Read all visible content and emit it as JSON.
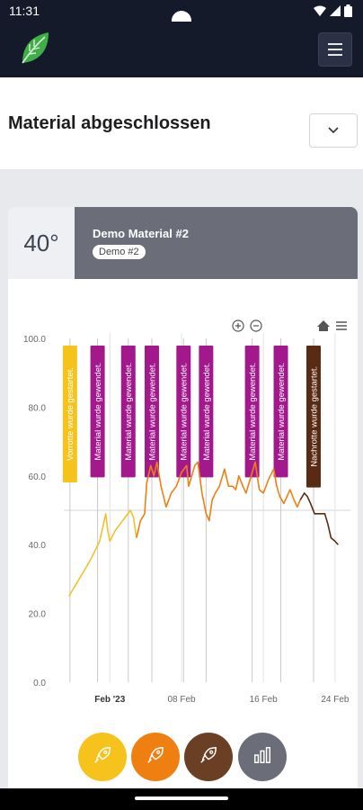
{
  "status": {
    "time": "11:31"
  },
  "header": {
    "logo_icon": "leaf-logo-icon",
    "menu_icon": "hamburger-icon"
  },
  "page": {
    "title": "Material abgeschlossen"
  },
  "card": {
    "temperature": "40°",
    "material_name": "Demo Material #2",
    "material_tag": "Demo #2"
  },
  "chart_data": {
    "type": "line",
    "x_ticks": [
      "Feb '23",
      "08 Feb",
      "16 Feb",
      "24 Feb"
    ],
    "y_ticks": [
      "0.0",
      "20.0",
      "40.0",
      "60.0",
      "80.0",
      "100.0"
    ],
    "ylim": [
      0,
      100
    ],
    "series": [
      {
        "color": "#f2c12e",
        "points": [
          [
            -4,
            25
          ],
          [
            -3,
            30
          ],
          [
            -2,
            35
          ],
          [
            -1.5,
            38
          ],
          [
            -1,
            41
          ],
          [
            -0.4,
            49
          ],
          [
            -0.2,
            44
          ],
          [
            0,
            41
          ],
          [
            0.5,
            44
          ],
          [
            1,
            46
          ],
          [
            1.5,
            48
          ],
          [
            2,
            50
          ],
          [
            2.3,
            48
          ],
          [
            2.6,
            42
          ]
        ]
      },
      {
        "color": "#f07f12",
        "points": [
          [
            2.6,
            42
          ],
          [
            3,
            47
          ],
          [
            3.4,
            49
          ],
          [
            3.6,
            58
          ],
          [
            4,
            63
          ],
          [
            4.3,
            60
          ],
          [
            4.6,
            64
          ],
          [
            5,
            57
          ],
          [
            5.5,
            51
          ],
          [
            6,
            55
          ],
          [
            6.5,
            57
          ],
          [
            7,
            61
          ],
          [
            7.5,
            63
          ],
          [
            7.7,
            57
          ],
          [
            8,
            60
          ],
          [
            8.3,
            63
          ],
          [
            8.6,
            64
          ],
          [
            9,
            55
          ],
          [
            9.4,
            49
          ],
          [
            9.7,
            47
          ],
          [
            10,
            53
          ],
          [
            10.3,
            55
          ],
          [
            10.7,
            57
          ],
          [
            11.2,
            62
          ],
          [
            11.6,
            57
          ],
          [
            12,
            57
          ],
          [
            12.3,
            56
          ],
          [
            12.6,
            60
          ],
          [
            13,
            57
          ],
          [
            13.3,
            55
          ],
          [
            13.7,
            59
          ],
          [
            14.2,
            64
          ],
          [
            14.6,
            56
          ],
          [
            15,
            55
          ],
          [
            15.5,
            59
          ],
          [
            16,
            62
          ],
          [
            16.3,
            57
          ],
          [
            16.6,
            54
          ],
          [
            17,
            52
          ],
          [
            17.3,
            54
          ],
          [
            17.6,
            56
          ],
          [
            18,
            53
          ],
          [
            18.3,
            51
          ],
          [
            18.6,
            53
          ]
        ]
      },
      {
        "color": "#5a2b14",
        "points": [
          [
            18.6,
            53
          ],
          [
            19,
            55
          ],
          [
            19.3,
            54
          ],
          [
            19.6,
            52
          ],
          [
            20,
            49
          ],
          [
            20.5,
            49
          ],
          [
            21,
            49
          ],
          [
            21.3,
            46
          ],
          [
            21.6,
            42
          ],
          [
            22,
            41
          ],
          [
            22.3,
            40
          ]
        ]
      }
    ],
    "annotations": [
      {
        "text": "Vorrotte wurde gestartet.",
        "x": -3.9,
        "color": "#f6c31c"
      },
      {
        "text": "Material wurde gewendet.",
        "x": -1.2,
        "color": "#a3198d"
      },
      {
        "text": "Material wurde gewendet.",
        "x": 1.8,
        "color": "#a3198d"
      },
      {
        "text": "Material wurde gewendet.",
        "x": 4.1,
        "color": "#a3198d"
      },
      {
        "text": "Material wurde gewendet.",
        "x": 7.2,
        "color": "#a3198d"
      },
      {
        "text": "Material wurde gewendet.",
        "x": 9.4,
        "color": "#a3198d"
      },
      {
        "text": "Material wurde gewendet.",
        "x": 13.9,
        "color": "#a3198d"
      },
      {
        "text": "Material wurde gewendet.",
        "x": 16.7,
        "color": "#a3198d"
      },
      {
        "text": "Nachrotte wurde gestartet.",
        "x": 19.9,
        "color": "#5a2b14"
      }
    ],
    "xlim": [
      -4.5,
      23.5
    ]
  },
  "actions": [
    {
      "name": "vorrotte-button",
      "color": "#f6c31c",
      "icon": "rocket-icon"
    },
    {
      "name": "rotte-button",
      "color": "#f07f12",
      "icon": "rocket-icon"
    },
    {
      "name": "nachrotte-button",
      "color": "#6b3f23",
      "icon": "rocket-icon"
    },
    {
      "name": "statistics-button",
      "color": "#6b6e78",
      "icon": "bar-chart-icon"
    }
  ]
}
